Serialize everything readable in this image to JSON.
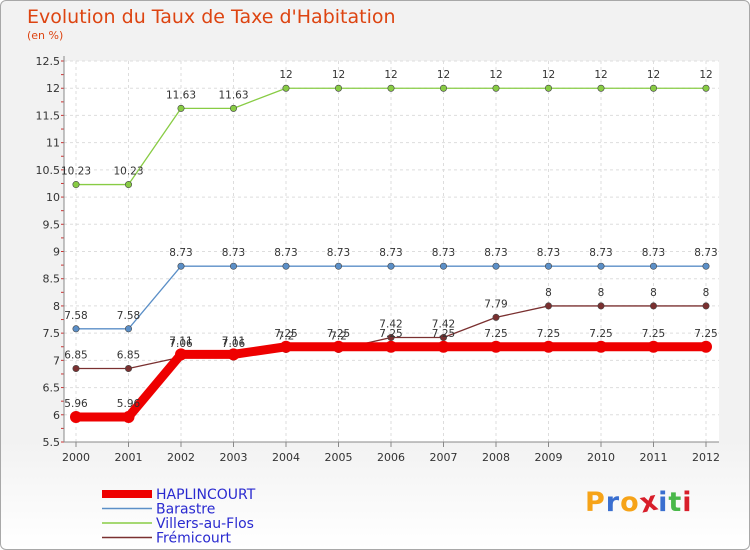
{
  "title": "Evolution du Taux de Taxe d'Habitation",
  "subtitle": "(en %)",
  "logo": {
    "text": [
      "P",
      "r",
      "o",
      "x",
      "i",
      "t",
      "i"
    ],
    "colors": [
      "#f6a318",
      "#3a6fd0",
      "#f6a318",
      "#d81e2a",
      "#3a6fd0",
      "#4ab84a",
      "#d81e2a"
    ]
  },
  "chart_data": {
    "type": "line",
    "title": "Evolution du Taux de Taxe d'Habitation",
    "ylabel": "(en %)",
    "xlabel": "",
    "x": [
      "2000",
      "2001",
      "2002",
      "2003",
      "2004",
      "2005",
      "2006",
      "2007",
      "2008",
      "2009",
      "2010",
      "2011",
      "2012"
    ],
    "ylim": [
      5.5,
      12.5
    ],
    "yticks": [
      "5.5",
      "6",
      "6.5",
      "7",
      "7.5",
      "8",
      "8.5",
      "9",
      "9.5",
      "10",
      "10.5",
      "11",
      "11.5",
      "12",
      "12.5"
    ],
    "legend": "bottom-left",
    "series": [
      {
        "name": "HAPLINCOURT",
        "color": "#ee0000",
        "values": [
          5.96,
          5.96,
          7.11,
          7.11,
          7.25,
          7.25,
          7.25,
          7.25,
          7.25,
          7.25,
          7.25,
          7.25,
          7.25
        ],
        "labels": [
          "5.96",
          "5.96",
          "7.11",
          "7.11",
          "7.25",
          "7.25",
          "7.25",
          "7.25",
          "7.25",
          "7.25",
          "7.25",
          "7.25",
          "7.25"
        ]
      },
      {
        "name": "Barastre",
        "color": "#5b8fc7",
        "values": [
          7.58,
          7.58,
          8.73,
          8.73,
          8.73,
          8.73,
          8.73,
          8.73,
          8.73,
          8.73,
          8.73,
          8.73,
          8.73
        ],
        "labels": [
          "7.58",
          "7.58",
          "8.73",
          "8.73",
          "8.73",
          "8.73",
          "8.73",
          "8.73",
          "8.73",
          "8.73",
          "8.73",
          "8.73",
          "8.73"
        ]
      },
      {
        "name": "Villers-au-Flos",
        "color": "#88cc44",
        "values": [
          10.23,
          10.23,
          11.63,
          11.63,
          12,
          12,
          12,
          12,
          12,
          12,
          12,
          12,
          12
        ],
        "labels": [
          "10.23",
          "10.23",
          "11.63",
          "11.63",
          "12",
          "12",
          "12",
          "12",
          "12",
          "12",
          "12",
          "12",
          "12"
        ]
      },
      {
        "name": "Frémicourt",
        "color": "#7a3030",
        "values": [
          6.85,
          6.85,
          7.06,
          7.06,
          7.2,
          7.2,
          7.42,
          7.42,
          7.79,
          8,
          8,
          8,
          8
        ],
        "labels": [
          "6.85",
          "6.85",
          "7.06",
          "7.06",
          "7.2",
          "7.2",
          "7.42",
          "7.42",
          "7.79",
          "8",
          "8",
          "8",
          "8"
        ]
      }
    ]
  }
}
